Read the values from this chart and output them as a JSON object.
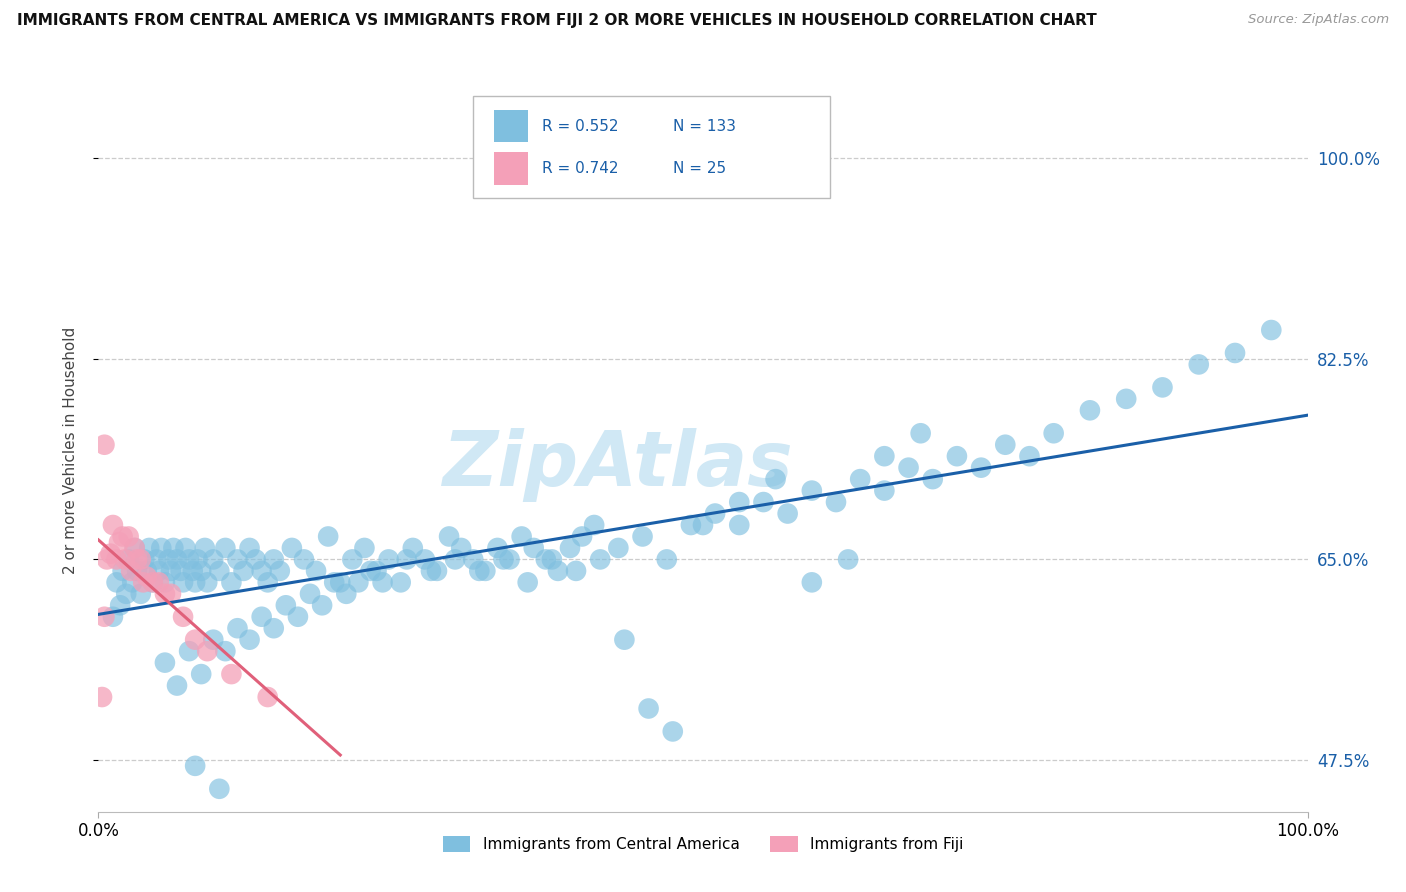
{
  "title": "IMMIGRANTS FROM CENTRAL AMERICA VS IMMIGRANTS FROM FIJI 2 OR MORE VEHICLES IN HOUSEHOLD CORRELATION CHART",
  "source": "Source: ZipAtlas.com",
  "ylabel": "2 or more Vehicles in Household",
  "R_blue": "0.552",
  "N_blue": "133",
  "R_pink": "0.742",
  "N_pink": "25",
  "blue_color": "#7fbfdf",
  "pink_color": "#f4a0b8",
  "blue_line_color": "#1a5fa8",
  "pink_line_color": "#e0607a",
  "watermark_color": "#d0e8f5",
  "xlim": [
    0.0,
    100.0
  ],
  "ylim": [
    43.0,
    106.0
  ],
  "yticks": [
    47.5,
    65.0,
    82.5,
    100.0
  ],
  "grid_color": "#cccccc",
  "legend_blue_label": "Immigrants from Central America",
  "legend_pink_label": "Immigrants from Fiji",
  "blue_x": [
    1.2,
    1.5,
    1.8,
    2.0,
    2.3,
    2.5,
    2.8,
    3.0,
    3.2,
    3.5,
    3.8,
    4.0,
    4.2,
    4.5,
    4.8,
    5.0,
    5.2,
    5.5,
    5.8,
    6.0,
    6.2,
    6.5,
    6.8,
    7.0,
    7.2,
    7.5,
    7.8,
    8.0,
    8.2,
    8.5,
    8.8,
    9.0,
    9.5,
    10.0,
    10.5,
    11.0,
    11.5,
    12.0,
    12.5,
    13.0,
    13.5,
    14.0,
    14.5,
    15.0,
    16.0,
    17.0,
    18.0,
    19.0,
    20.0,
    21.0,
    22.0,
    23.0,
    24.0,
    25.0,
    26.0,
    27.0,
    28.0,
    29.0,
    30.0,
    31.0,
    32.0,
    33.0,
    34.0,
    35.0,
    36.0,
    37.0,
    38.0,
    39.0,
    40.0,
    41.0,
    43.0,
    45.0,
    47.0,
    49.0,
    51.0,
    53.0,
    55.0,
    57.0,
    59.0,
    61.0,
    63.0,
    65.0,
    67.0,
    69.0,
    71.0,
    73.0,
    75.0,
    77.0,
    79.0,
    82.0,
    85.0,
    88.0,
    91.0,
    94.0,
    97.0,
    5.5,
    6.5,
    7.5,
    8.5,
    9.5,
    10.5,
    11.5,
    12.5,
    13.5,
    14.5,
    15.5,
    16.5,
    17.5,
    18.5,
    19.5,
    20.5,
    21.5,
    22.5,
    23.5,
    25.5,
    27.5,
    29.5,
    31.5,
    33.5,
    35.5,
    37.5,
    39.5,
    41.5,
    43.5,
    45.5,
    47.5,
    50.0,
    53.0,
    56.0,
    59.0,
    62.0,
    65.0,
    68.0,
    8.0,
    10.0
  ],
  "blue_y": [
    60.0,
    63.0,
    61.0,
    64.0,
    62.0,
    65.0,
    63.0,
    66.0,
    64.0,
    62.0,
    65.0,
    64.0,
    66.0,
    63.0,
    65.0,
    64.0,
    66.0,
    63.0,
    65.0,
    64.0,
    66.0,
    65.0,
    64.0,
    63.0,
    66.0,
    65.0,
    64.0,
    63.0,
    65.0,
    64.0,
    66.0,
    63.0,
    65.0,
    64.0,
    66.0,
    63.0,
    65.0,
    64.0,
    66.0,
    65.0,
    64.0,
    63.0,
    65.0,
    64.0,
    66.0,
    65.0,
    64.0,
    67.0,
    63.0,
    65.0,
    66.0,
    64.0,
    65.0,
    63.0,
    66.0,
    65.0,
    64.0,
    67.0,
    66.0,
    65.0,
    64.0,
    66.0,
    65.0,
    67.0,
    66.0,
    65.0,
    64.0,
    66.0,
    67.0,
    68.0,
    66.0,
    67.0,
    65.0,
    68.0,
    69.0,
    68.0,
    70.0,
    69.0,
    71.0,
    70.0,
    72.0,
    71.0,
    73.0,
    72.0,
    74.0,
    73.0,
    75.0,
    74.0,
    76.0,
    78.0,
    79.0,
    80.0,
    82.0,
    83.0,
    85.0,
    56.0,
    54.0,
    57.0,
    55.0,
    58.0,
    57.0,
    59.0,
    58.0,
    60.0,
    59.0,
    61.0,
    60.0,
    62.0,
    61.0,
    63.0,
    62.0,
    63.0,
    64.0,
    63.0,
    65.0,
    64.0,
    65.0,
    64.0,
    65.0,
    63.0,
    65.0,
    64.0,
    65.0,
    58.0,
    52.0,
    50.0,
    68.0,
    70.0,
    72.0,
    63.0,
    65.0,
    74.0,
    76.0,
    47.0,
    45.0
  ],
  "pink_x": [
    0.3,
    0.5,
    0.7,
    1.0,
    1.2,
    1.5,
    1.7,
    2.0,
    2.2,
    2.5,
    2.7,
    3.0,
    3.2,
    3.5,
    3.7,
    4.0,
    4.5,
    5.0,
    5.5,
    6.0,
    7.0,
    8.0,
    9.0,
    11.0,
    14.0
  ],
  "pink_y": [
    53.0,
    60.0,
    65.0,
    65.5,
    68.0,
    65.0,
    66.5,
    67.0,
    65.0,
    67.0,
    64.0,
    66.0,
    65.0,
    65.0,
    63.0,
    63.5,
    63.0,
    63.0,
    62.0,
    62.0,
    60.0,
    58.0,
    57.0,
    55.0,
    53.0
  ],
  "pink_outlier_x": [
    0.5
  ],
  "pink_outlier_y": [
    75.0
  ]
}
